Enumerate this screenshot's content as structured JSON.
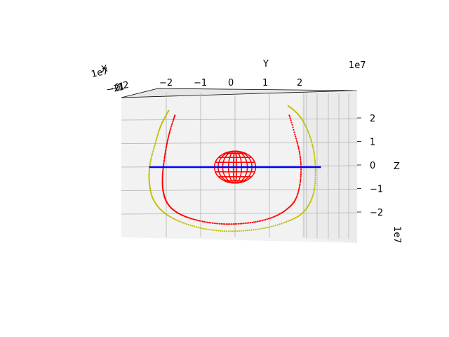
{
  "chart_data": {
    "type": "scatter",
    "projection": "3d",
    "title": "",
    "axes": {
      "x": {
        "label": "X",
        "offset_label": "1e7",
        "tick_labels": [
          "−2",
          "−1",
          "0",
          "1",
          "2"
        ]
      },
      "y": {
        "label": "Y",
        "offset_label": "1e7",
        "tick_labels": [
          "−2",
          "−1",
          "0",
          "1",
          "2"
        ],
        "ticks": [
          -2,
          -1,
          0,
          1,
          2
        ],
        "lim": [
          -3.0,
          3.0
        ]
      },
      "z": {
        "label": "Z",
        "offset_label": "1e7",
        "tick_labels": [
          "2",
          "1",
          "0",
          "−1",
          "−2"
        ],
        "ticks": [
          2,
          1,
          0,
          -1,
          -2
        ],
        "lim": [
          -2.8,
          3.0
        ]
      }
    },
    "grid": true,
    "series": [
      {
        "kind": "trajectory",
        "color": "#ff0000",
        "y": [
          -1.75,
          -1.88,
          -1.98,
          -2.05,
          -2.1,
          -2.11,
          -2.08,
          -2.0,
          -1.85,
          -1.6,
          -1.25,
          -0.8,
          -0.3,
          0.2,
          0.7,
          1.15,
          1.5,
          1.75,
          1.88,
          1.92,
          1.88,
          1.76,
          1.58
        ],
        "z": [
          2.2,
          1.6,
          1.0,
          0.4,
          -0.2,
          -0.7,
          -1.1,
          -1.45,
          -1.75,
          -2.0,
          -2.2,
          -2.35,
          -2.42,
          -2.4,
          -2.3,
          -2.1,
          -1.8,
          -1.4,
          -0.8,
          -0.1,
          0.6,
          1.3,
          2.2
        ]
      },
      {
        "kind": "trajectory",
        "color": "#bfbf00",
        "y": [
          -1.93,
          -2.08,
          -2.2,
          -2.32,
          -2.45,
          -2.5,
          -2.48,
          -2.4,
          -2.2,
          -1.9,
          -1.45,
          -0.9,
          -0.3,
          0.3,
          0.9,
          1.45,
          1.88,
          2.15,
          2.3,
          2.34,
          2.3,
          2.18,
          2.0,
          1.8,
          1.55
        ],
        "z": [
          2.4,
          2.0,
          1.6,
          1.0,
          0.3,
          -0.3,
          -0.8,
          -1.3,
          -1.75,
          -2.1,
          -2.4,
          -2.62,
          -2.72,
          -2.7,
          -2.58,
          -2.35,
          -2.05,
          -1.6,
          -1.0,
          -0.2,
          0.6,
          1.3,
          1.9,
          2.3,
          2.6
        ]
      },
      {
        "kind": "line",
        "color": "#0000ff",
        "y": [
          -2.5,
          2.5
        ],
        "z": [
          0,
          0
        ]
      },
      {
        "kind": "wireframe-sphere",
        "color": "#ff0000",
        "center": [
          0,
          0
        ],
        "radius_y": 0.6,
        "radius_z": 0.68
      }
    ]
  }
}
